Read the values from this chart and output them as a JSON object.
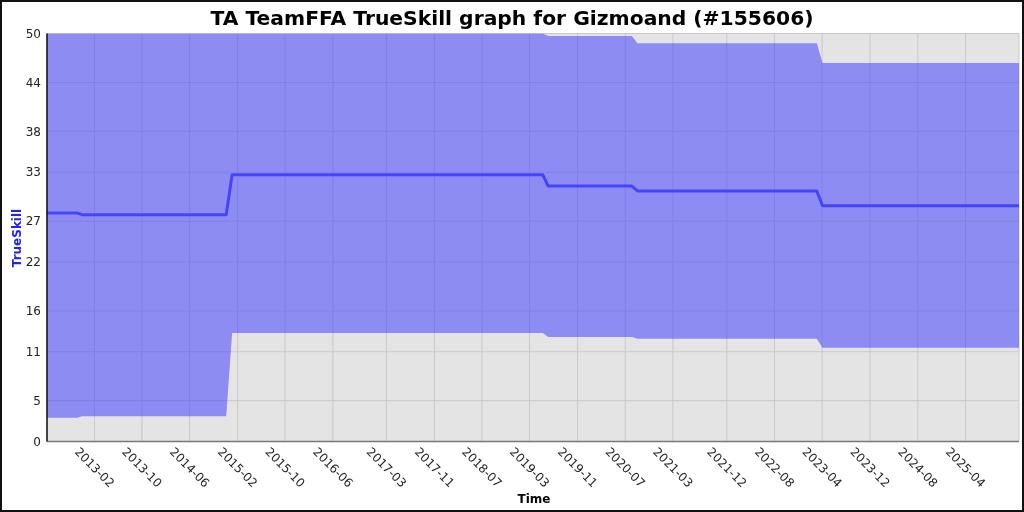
{
  "chart_data": {
    "type": "line",
    "title": "TA TeamFFA TrueSkill graph for Gizmoand (#155606)",
    "xlabel": "Time",
    "ylabel": "TrueSkill",
    "x": [
      "2012-06-04",
      "2012-11-05",
      "2012-11-30",
      "2014-12-05",
      "2015-01-04",
      "2019-05-07",
      "2019-06-04",
      "2020-08-04",
      "2020-09-01",
      "2023-03-05",
      "2023-04-03",
      "2025-12-30"
    ],
    "series": [
      {
        "color": "#4444ff",
        "values": [
          28.0,
          28.0,
          27.8,
          27.8,
          32.7,
          32.7,
          31.3,
          31.3,
          30.7,
          30.7,
          28.9,
          28.9
        ],
        "lower": [
          2.9,
          2.9,
          3.1,
          3.1,
          13.3,
          13.3,
          12.8,
          12.8,
          12.6,
          12.6,
          11.5,
          11.5
        ],
        "upper": [
          50,
          50,
          50,
          50,
          50,
          50,
          49.7,
          49.7,
          48.8,
          48.8,
          46.4,
          46.4
        ]
      }
    ],
    "xlim": [
      "2012-06-04",
      "2025-12-30"
    ],
    "xticks": [
      "2013-02",
      "2013-10",
      "2014-06",
      "2015-02",
      "2015-10",
      "2016-06",
      "2017-03",
      "2017-11",
      "2018-07",
      "2019-03",
      "2019-11",
      "2020-07",
      "2021-03",
      "2021-12",
      "2022-08",
      "2023-04",
      "2023-12",
      "2024-08",
      "2025-04"
    ],
    "ylim": [
      0,
      50
    ],
    "yticks": [
      0,
      5,
      11,
      16,
      22,
      27,
      33,
      38,
      44,
      50
    ],
    "grid": true
  }
}
